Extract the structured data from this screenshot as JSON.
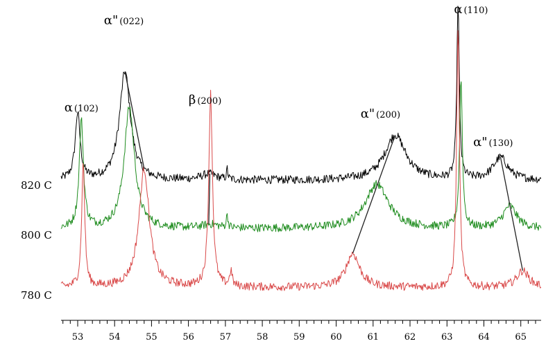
{
  "chart_data": {
    "type": "line",
    "title": "",
    "xlabel": "",
    "ylabel": "",
    "xlim": [
      52.55,
      65.55
    ],
    "x_ticks": [
      53,
      54,
      55,
      56,
      57,
      58,
      59,
      60,
      61,
      62,
      63,
      64,
      65
    ],
    "minor_tick_step": 0.2,
    "grid": false,
    "series": [
      {
        "name": "820 C",
        "color": "#000000",
        "baseline": 1.0,
        "peaks": [
          [
            53.0,
            8.8,
            0.08
          ],
          [
            54.28,
            14.4,
            0.18
          ],
          [
            56.55,
            0.8,
            0.25
          ],
          [
            57.05,
            1.4,
            0.02
          ],
          [
            61.6,
            6.0,
            0.35
          ],
          [
            63.3,
            23.4,
            0.04
          ],
          [
            64.45,
            3.0,
            0.24
          ]
        ]
      },
      {
        "name": "800 C",
        "color": "#1e8c1e",
        "baseline": 1.2,
        "peaks": [
          [
            53.1,
            14.2,
            0.07
          ],
          [
            54.4,
            16.1,
            0.17
          ],
          [
            56.6,
            0.5,
            0.28
          ],
          [
            57.05,
            1.8,
            0.025
          ],
          [
            61.1,
            5.9,
            0.38
          ],
          [
            63.38,
            19.8,
            0.045
          ],
          [
            64.7,
            3.0,
            0.22
          ]
        ]
      },
      {
        "name": "780 C",
        "color": "#d94848",
        "baseline": 1.4,
        "peaks": [
          [
            53.15,
            16.4,
            0.05
          ],
          [
            54.8,
            15.7,
            0.17
          ],
          [
            56.6,
            25.6,
            0.06
          ],
          [
            57.15,
            2.0,
            0.04
          ],
          [
            60.45,
            4.5,
            0.22
          ],
          [
            63.3,
            34.5,
            0.045
          ],
          [
            65.05,
            2.2,
            0.2
          ]
        ]
      }
    ],
    "annotations": [
      {
        "symbol": "α",
        "hkl": "(102)",
        "x": 53.1
      },
      {
        "symbol": "α\"",
        "hkl": "(022)",
        "x": 54.25
      },
      {
        "symbol": "β",
        "hkl": "(200)",
        "x": 56.45
      },
      {
        "symbol": "α\"",
        "hkl": "(200)",
        "x": 61.2
      },
      {
        "symbol": "α",
        "hkl": "(110)",
        "x": 63.65
      },
      {
        "symbol": "α\"",
        "hkl": "(130)",
        "x": 64.25
      }
    ],
    "shift_lines": [
      [
        [
          54.28,
          "820 C"
        ],
        [
          54.8,
          "780 C"
        ]
      ],
      [
        [
          56.58,
          "820 C"
        ],
        [
          56.55,
          "800 C"
        ]
      ],
      [
        [
          61.6,
          "820 C"
        ],
        [
          60.45,
          "780 C"
        ]
      ],
      [
        [
          64.45,
          "820 C"
        ],
        [
          65.05,
          "780 C"
        ]
      ]
    ]
  }
}
